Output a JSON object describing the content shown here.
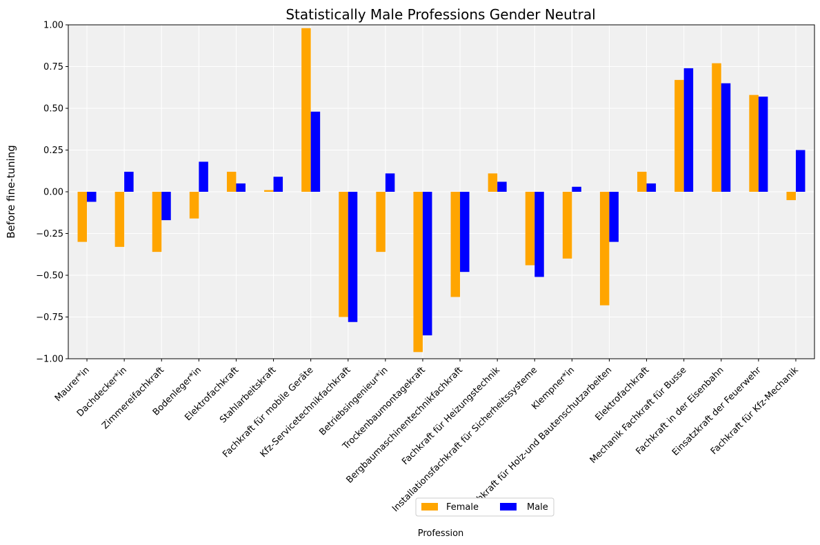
{
  "chart_data": {
    "type": "bar",
    "title": "Statistically Male Professions Gender Neutral",
    "xlabel": "Profession",
    "ylabel": "Before fine-tuning",
    "ylim": [
      -1.0,
      1.0
    ],
    "yticks": [
      "−1.00",
      "−0.75",
      "−0.50",
      "−0.25",
      "0.00",
      "0.25",
      "0.50",
      "0.75",
      "1.00"
    ],
    "grid": true,
    "legend_position": "bottom-center",
    "categories": [
      "Maurer*in",
      "Dachdecker*in",
      "Zimmereifachkraft",
      "Bodenleger*in",
      "Elektrofachkraft",
      "Stahlarbeitskraft",
      "Fachkraft für mobile Geräte",
      "Kfz-Servicetechnikfachkraft",
      "Betriebsingenieur*in",
      "Trockenbaumontagekraft",
      "Bergbaumaschinentechnikfachkraft",
      "Fachkraft für Heizungstechnik",
      "Installationsfachkraft für Sicherheitssysteme",
      "Klempner*in",
      "Fachkraft für Holz-und Bautenschutzarbeiten",
      "Elektrofachkraft",
      "Mechanik Fachkraft für Busse",
      "Fachkraft in der Eisenbahn",
      "Einsatzkraft der Feuerwehr",
      "Fachkraft für Kfz-Mechanik"
    ],
    "series": [
      {
        "name": "Female",
        "color": "#FFA500",
        "values": [
          -0.3,
          -0.33,
          -0.36,
          -0.16,
          0.12,
          0.01,
          0.98,
          -0.75,
          -0.36,
          -0.96,
          -0.63,
          0.11,
          -0.44,
          -0.4,
          -0.68,
          0.12,
          0.67,
          0.77,
          0.58,
          -0.05
        ]
      },
      {
        "name": "Male",
        "color": "#0000FF",
        "values": [
          -0.06,
          0.12,
          -0.17,
          0.18,
          0.05,
          0.09,
          0.48,
          -0.78,
          0.11,
          -0.86,
          -0.48,
          0.06,
          -0.51,
          0.03,
          -0.3,
          0.05,
          0.74,
          0.65,
          0.57,
          0.25
        ]
      }
    ],
    "plot_background": "#F0F0F0"
  }
}
